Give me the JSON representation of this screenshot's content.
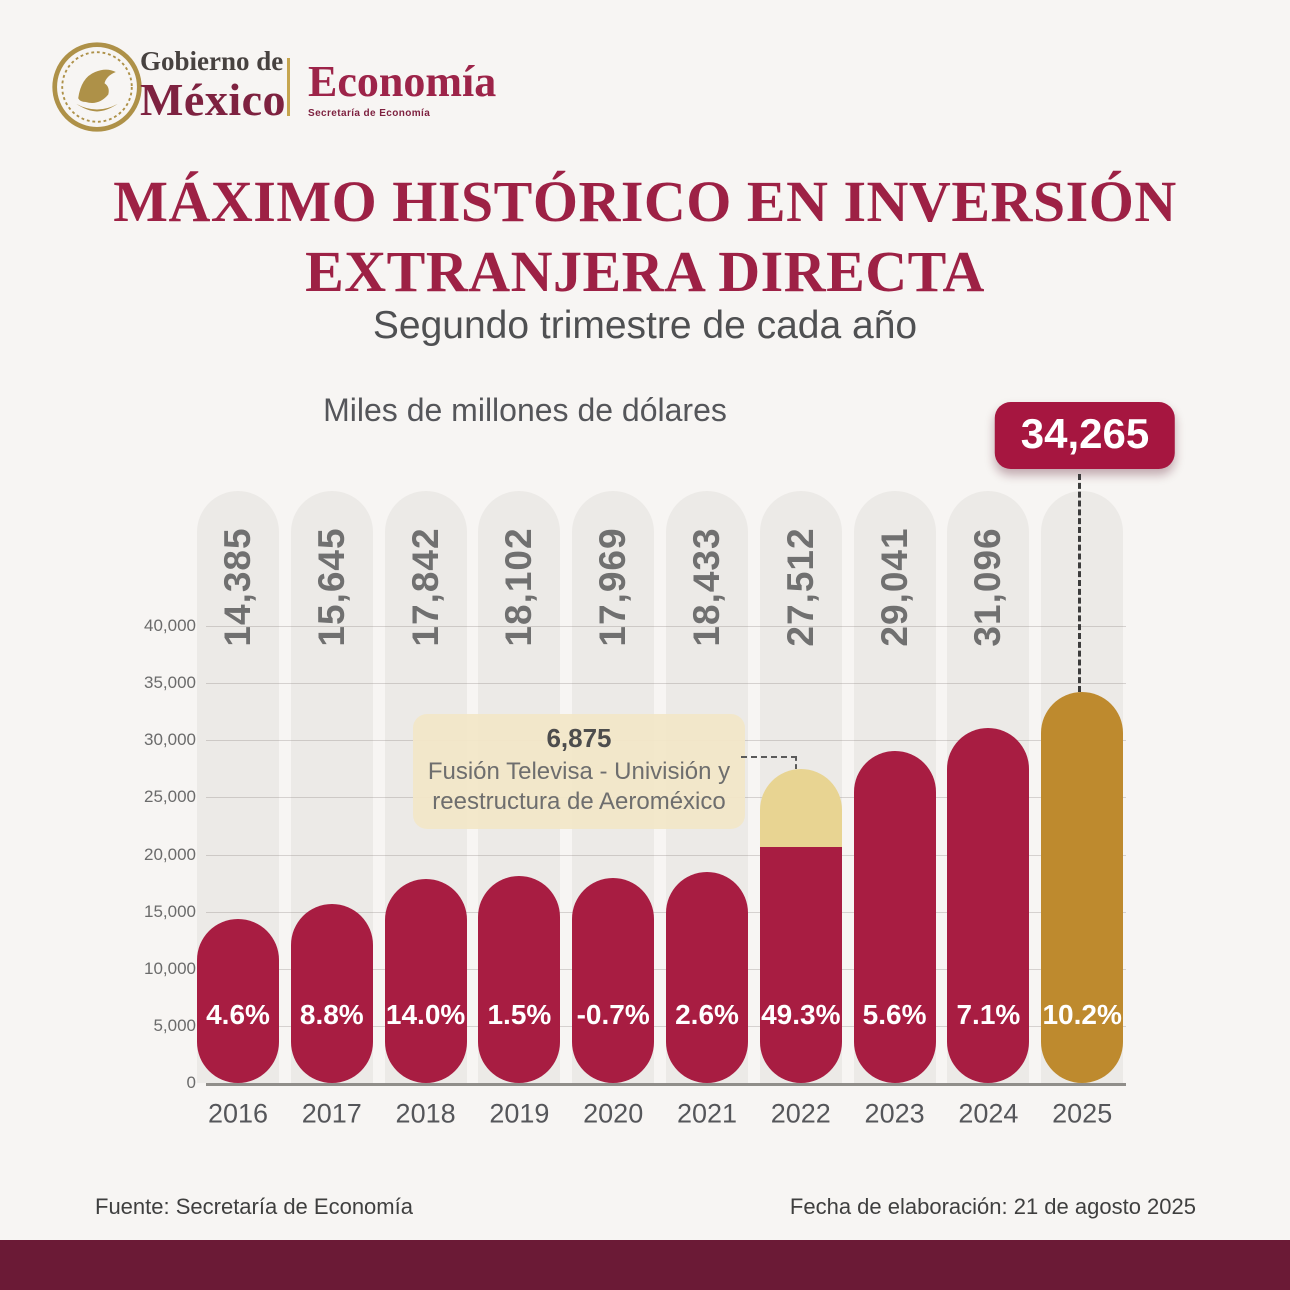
{
  "header": {
    "seal": "mexico-coat-of-arms",
    "gobierno_line": "Gobierno de",
    "mexico_line": "México",
    "agency": "Economía",
    "agency_sub": "Secretaría de Economía"
  },
  "title_line1": "MÁXIMO HISTÓRICO EN INVERSIÓN",
  "title_line2": "EXTRANJERA DIRECTA",
  "subtitle": "Segundo trimestre de cada año",
  "chart_data": {
    "type": "bar",
    "title": "Miles de millones de dólares",
    "xlabel": "",
    "ylabel": "",
    "ylim": [
      0,
      40000
    ],
    "ytick_step": 5000,
    "ytick_labels": [
      "0",
      "5,000",
      "10,000",
      "15,000",
      "20,000",
      "25,000",
      "30,000",
      "35,000",
      "40,000"
    ],
    "grid": true,
    "categories": [
      "2016",
      "2017",
      "2018",
      "2019",
      "2020",
      "2021",
      "2022",
      "2023",
      "2024",
      "2025"
    ],
    "values": [
      14385,
      15645,
      17842,
      18102,
      17969,
      18433,
      27512,
      29041,
      31096,
      34265
    ],
    "value_labels": [
      "14,385",
      "15,645",
      "17,842",
      "18,102",
      "17,969",
      "18,433",
      "27,512",
      "29,041",
      "31,096",
      "34,265"
    ],
    "growth_labels": [
      "4.6%",
      "8.8%",
      "14.0%",
      "1.5%",
      "-0.7%",
      "2.6%",
      "49.3%",
      "5.6%",
      "7.1%",
      "10.2%"
    ],
    "bar_color": "#A81D42",
    "track_color": "#ECEAE7",
    "highlight": {
      "category": "2025",
      "color": "#BE8A2E",
      "callout_label": "34,265"
    },
    "segment_2022": {
      "category": "2022",
      "value": 6875,
      "color": "#E8D492",
      "label": "6,875",
      "note_line1": "Fusión Televisa - Univisión y",
      "note_line2": "reestructura de Aeroméxico"
    }
  },
  "footer": {
    "source": "Fuente: Secretaría de Economía",
    "date": "Fecha de elaboración: 21 de agosto 2025"
  }
}
